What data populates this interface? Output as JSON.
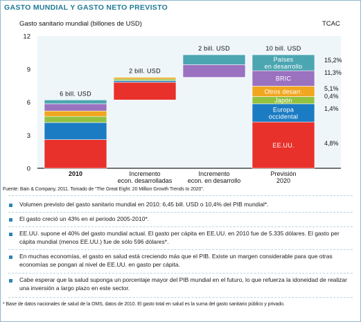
{
  "title": "GASTO MUNDIAL Y GASTO NETO PREVISTO",
  "chart_data": {
    "type": "bar",
    "subtype": "stacked-waterfall",
    "ylabel": "Gasto sanitario mundial (billones de USD)",
    "right_header": "TCAC",
    "ylim": [
      0,
      12
    ],
    "yticks": [
      "0",
      "3",
      "6",
      "9",
      "12"
    ],
    "categories": [
      {
        "lines": [
          "2010"
        ]
      },
      {
        "lines": [
          "Incremento",
          "econ. desarrolladas"
        ]
      },
      {
        "lines": [
          "Incremento",
          "econ. en desarrollo"
        ]
      },
      {
        "lines": [
          "Previsión",
          "2020"
        ]
      }
    ],
    "bar_totals": [
      "6 bill. USD",
      "2 bill. USD",
      "2 bill. USD",
      "10 bill. USD"
    ],
    "colors": {
      "eeuu": "#e8312b",
      "europa": "#1b7cc4",
      "japon": "#93c140",
      "otros": "#f1a620",
      "bric": "#9a72c0",
      "paises": "#4ba6b1"
    },
    "bars": [
      {
        "category": "2010",
        "segments": [
          {
            "key": "eeuu",
            "from": 0,
            "to": 2.6
          },
          {
            "key": "europa",
            "from": 2.6,
            "to": 4.15
          },
          {
            "key": "japon",
            "from": 4.15,
            "to": 4.7
          },
          {
            "key": "otros",
            "from": 4.7,
            "to": 5.2
          },
          {
            "key": "bric",
            "from": 5.2,
            "to": 5.85
          },
          {
            "key": "paises",
            "from": 5.85,
            "to": 6.2
          }
        ]
      },
      {
        "category": "Incremento econ. desarrolladas",
        "segments": [
          {
            "key": "eeuu",
            "from": 6.2,
            "to": 7.8
          },
          {
            "key": "europa",
            "from": 7.8,
            "to": 7.95
          },
          {
            "key": "japon",
            "from": 7.95,
            "to": 8.1
          },
          {
            "key": "otros",
            "from": 8.1,
            "to": 8.25
          }
        ]
      },
      {
        "category": "Incremento econ. en desarrollo",
        "segments": [
          {
            "key": "bric",
            "from": 8.25,
            "to": 9.4
          },
          {
            "key": "paises",
            "from": 9.4,
            "to": 10.3
          }
        ]
      },
      {
        "category": "Previsión 2020",
        "segments": [
          {
            "key": "eeuu",
            "from": 0,
            "to": 4.2
          },
          {
            "key": "europa",
            "from": 4.2,
            "to": 5.85
          },
          {
            "key": "japon",
            "from": 5.85,
            "to": 6.5
          },
          {
            "key": "otros",
            "from": 6.5,
            "to": 7.45
          },
          {
            "key": "bric",
            "from": 7.45,
            "to": 8.85
          },
          {
            "key": "paises",
            "from": 8.85,
            "to": 10.3
          }
        ]
      }
    ],
    "segment_labels_2020": [
      {
        "key": "paises",
        "lines": [
          "Países",
          "en desarrollo"
        ],
        "tcac": "15,2%"
      },
      {
        "key": "bric",
        "lines": [
          "BRIC"
        ],
        "tcac": "11,3%"
      },
      {
        "key": "otros",
        "lines": [
          "Otros desarr."
        ],
        "tcac": "5,1%"
      },
      {
        "key": "japon",
        "lines": [
          "Japón"
        ],
        "tcac": "0,4%"
      },
      {
        "key": "europa",
        "lines": [
          "Europa",
          "occidental"
        ],
        "tcac": "1,4%"
      },
      {
        "key": "eeuu",
        "lines": [
          "EE.UU."
        ],
        "tcac": "4,8%"
      }
    ]
  },
  "source": "Fuente: Bain & Company, 2011. Tomado de “The Great Eight: 20 Million Growth Trends to 2020”.",
  "bullets": [
    "Volumen previsto del gasto sanitario mundial en 2010: 6,45 bill. USD o 10,4% del PIB mundial*.",
    "El gasto creció un 43% en el periodo 2005-2010*.",
    "EE.UU. supone el 40% del gasto mundial actual. El gasto per cápita en EE.UU. en 2010 fue de 5.335 dólares. El gasto per cápita mundial (menos EE.UU.) fue de sólo 596 dólares*.",
    "En muchas economías, el gasto en salud está creciendo más que el PIB. Existe un margen considerable para que otras economías se pongan al nivel de EE.UU. en gasto per cápita.",
    "Cabe esperar que la salud suponga un porcentaje mayor del PIB mundial en el futuro, lo que refuerza la idoneidad de realizar una inversión a largo plazo en este sector."
  ],
  "footnote": "* Base de datos nacionales de salud de la OMS, datos de 2010. El gasto total en salud es la suma del gasto sanitario público y privado."
}
